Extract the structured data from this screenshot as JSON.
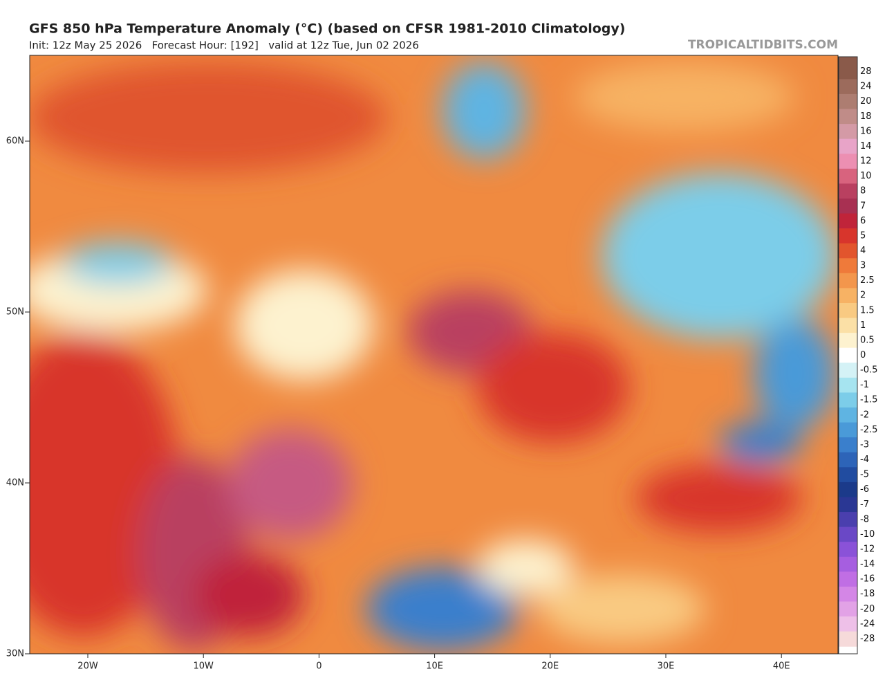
{
  "header": {
    "title": "GFS 850 hPa Temperature Anomaly (°C) (based on CFSR 1981-2010 Climatology)",
    "subtitle": "Init: 12z May 25 2026   Forecast Hour: [192]   valid at 12z Tue, Jun 02 2026",
    "watermark": "TROPICALTIDBITS.COM"
  },
  "map": {
    "lat_labels": [
      "60N",
      "50N",
      "40N",
      "30N"
    ],
    "lon_labels": [
      "20W",
      "10W",
      "0",
      "10E",
      "20E",
      "30E",
      "40E"
    ]
  },
  "colorbar": {
    "levels": [
      {
        "value": 28,
        "color": "#8a5a4a"
      },
      {
        "value": 24,
        "color": "#9c6b5c"
      },
      {
        "value": 20,
        "color": "#ad7d71"
      },
      {
        "value": 18,
        "color": "#c08c88"
      },
      {
        "value": 16,
        "color": "#d49aa6"
      },
      {
        "value": 14,
        "color": "#e8a4c8"
      },
      {
        "value": 12,
        "color": "#ec8fb2"
      },
      {
        "value": 10,
        "color": "#d8637e"
      },
      {
        "value": 8,
        "color": "#b94060"
      },
      {
        "value": 7,
        "color": "#a83052"
      },
      {
        "value": 6,
        "color": "#c0243a"
      },
      {
        "value": 5,
        "color": "#d8352c"
      },
      {
        "value": 4,
        "color": "#e2552d"
      },
      {
        "value": 3,
        "color": "#ef7a3a"
      },
      {
        "value": 2.5,
        "color": "#f3964c"
      },
      {
        "value": 2,
        "color": "#f7b264"
      },
      {
        "value": 1.5,
        "color": "#f9ca82"
      },
      {
        "value": 1,
        "color": "#fbe0a6"
      },
      {
        "value": 0.5,
        "color": "#fdf2cf"
      },
      {
        "value": 0,
        "color": "#ffffff"
      },
      {
        "value": -0.5,
        "color": "#d4f2f6"
      },
      {
        "value": -1,
        "color": "#a6e4f0"
      },
      {
        "value": -1.5,
        "color": "#7ccde9"
      },
      {
        "value": -2,
        "color": "#5fb4e2"
      },
      {
        "value": -2.5,
        "color": "#4a9ad8"
      },
      {
        "value": -3,
        "color": "#3a7fcc"
      },
      {
        "value": -4,
        "color": "#2d64b8"
      },
      {
        "value": -5,
        "color": "#214ca0"
      },
      {
        "value": -6,
        "color": "#1b3a8a"
      },
      {
        "value": -7,
        "color": "#2a3794"
      },
      {
        "value": -8,
        "color": "#4a3fae"
      },
      {
        "value": -10,
        "color": "#6a48c6"
      },
      {
        "value": -12,
        "color": "#8a52d8"
      },
      {
        "value": -14,
        "color": "#a65ee0"
      },
      {
        "value": -16,
        "color": "#c06ee4"
      },
      {
        "value": -18,
        "color": "#d486e6"
      },
      {
        "value": -20,
        "color": "#e2a2e6"
      },
      {
        "value": -24,
        "color": "#eec0e8"
      },
      {
        "value": -28,
        "color": "#f6dada"
      }
    ]
  }
}
